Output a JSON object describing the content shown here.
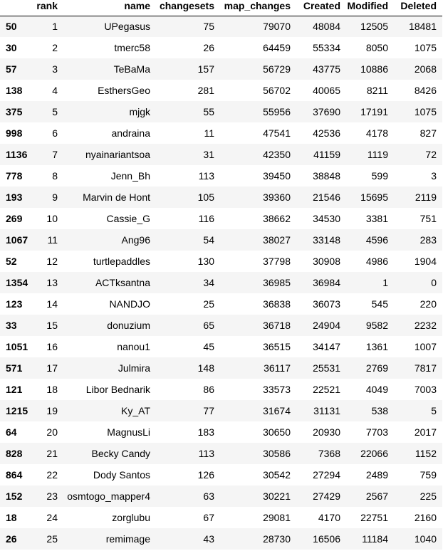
{
  "table": {
    "columns": [
      "",
      "rank",
      "name",
      "changesets",
      "map_changes",
      "Created",
      "Modified",
      "Deleted"
    ],
    "rows": [
      {
        "index": "50",
        "cells": [
          "1",
          "UPegasus",
          "75",
          "79070",
          "48084",
          "12505",
          "18481"
        ]
      },
      {
        "index": "30",
        "cells": [
          "2",
          "tmerc58",
          "26",
          "64459",
          "55334",
          "8050",
          "1075"
        ]
      },
      {
        "index": "57",
        "cells": [
          "3",
          "TeBaMa",
          "157",
          "56729",
          "43775",
          "10886",
          "2068"
        ]
      },
      {
        "index": "138",
        "cells": [
          "4",
          "EsthersGeo",
          "281",
          "56702",
          "40065",
          "8211",
          "8426"
        ]
      },
      {
        "index": "375",
        "cells": [
          "5",
          "mjgk",
          "55",
          "55956",
          "37690",
          "17191",
          "1075"
        ]
      },
      {
        "index": "998",
        "cells": [
          "6",
          "andraina",
          "11",
          "47541",
          "42536",
          "4178",
          "827"
        ]
      },
      {
        "index": "1136",
        "cells": [
          "7",
          "nyainariantsoa",
          "31",
          "42350",
          "41159",
          "1119",
          "72"
        ]
      },
      {
        "index": "778",
        "cells": [
          "8",
          "Jenn_Bh",
          "113",
          "39450",
          "38848",
          "599",
          "3"
        ]
      },
      {
        "index": "193",
        "cells": [
          "9",
          "Marvin de Hont",
          "105",
          "39360",
          "21546",
          "15695",
          "2119"
        ]
      },
      {
        "index": "269",
        "cells": [
          "10",
          "Cassie_G",
          "116",
          "38662",
          "34530",
          "3381",
          "751"
        ]
      },
      {
        "index": "1067",
        "cells": [
          "11",
          "Ang96",
          "54",
          "38027",
          "33148",
          "4596",
          "283"
        ]
      },
      {
        "index": "52",
        "cells": [
          "12",
          "turtlepaddles",
          "130",
          "37798",
          "30908",
          "4986",
          "1904"
        ]
      },
      {
        "index": "1354",
        "cells": [
          "13",
          "ACTksantna",
          "34",
          "36985",
          "36984",
          "1",
          "0"
        ]
      },
      {
        "index": "123",
        "cells": [
          "14",
          "NANDJO",
          "25",
          "36838",
          "36073",
          "545",
          "220"
        ]
      },
      {
        "index": "33",
        "cells": [
          "15",
          "donuzium",
          "65",
          "36718",
          "24904",
          "9582",
          "2232"
        ]
      },
      {
        "index": "1051",
        "cells": [
          "16",
          "nanou1",
          "45",
          "36515",
          "34147",
          "1361",
          "1007"
        ]
      },
      {
        "index": "571",
        "cells": [
          "17",
          "Julmira",
          "148",
          "36117",
          "25531",
          "2769",
          "7817"
        ]
      },
      {
        "index": "121",
        "cells": [
          "18",
          "Libor Bednarik",
          "86",
          "33573",
          "22521",
          "4049",
          "7003"
        ]
      },
      {
        "index": "1215",
        "cells": [
          "19",
          "Ky_AT",
          "77",
          "31674",
          "31131",
          "538",
          "5"
        ]
      },
      {
        "index": "64",
        "cells": [
          "20",
          "MagnusLi",
          "183",
          "30650",
          "20930",
          "7703",
          "2017"
        ]
      },
      {
        "index": "828",
        "cells": [
          "21",
          "Becky Candy",
          "113",
          "30586",
          "7368",
          "22066",
          "1152"
        ]
      },
      {
        "index": "864",
        "cells": [
          "22",
          "Dody Santos",
          "126",
          "30542",
          "27294",
          "2489",
          "759"
        ]
      },
      {
        "index": "152",
        "cells": [
          "23",
          "osmtogo_mapper4",
          "63",
          "30221",
          "27429",
          "2567",
          "225"
        ]
      },
      {
        "index": "18",
        "cells": [
          "24",
          "zorglubu",
          "67",
          "29081",
          "4170",
          "22751",
          "2160"
        ]
      },
      {
        "index": "26",
        "cells": [
          "25",
          "remimage",
          "43",
          "28730",
          "16506",
          "11184",
          "1040"
        ]
      }
    ]
  }
}
